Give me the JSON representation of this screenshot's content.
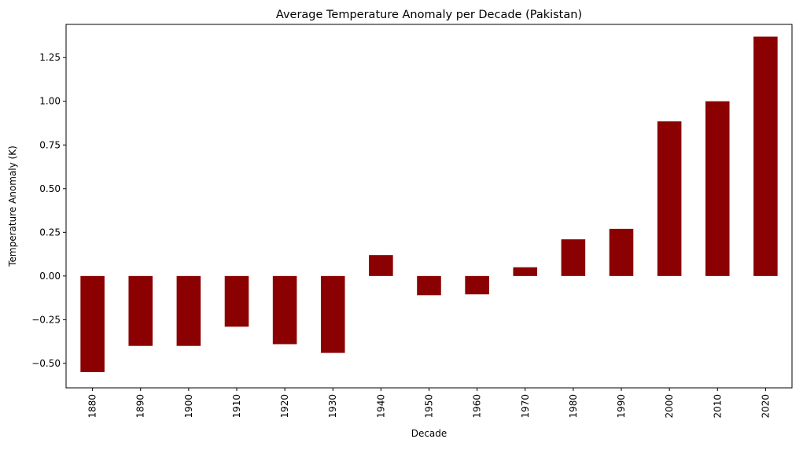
{
  "chart_data": {
    "type": "bar",
    "title": "Average Temperature Anomaly per Decade (Pakistan)",
    "xlabel": "Decade",
    "ylabel": "Temperature Anomaly (K)",
    "categories": [
      "1880",
      "1890",
      "1900",
      "1910",
      "1920",
      "1930",
      "1940",
      "1950",
      "1960",
      "1970",
      "1980",
      "1990",
      "2000",
      "2010",
      "2020"
    ],
    "values": [
      -0.55,
      -0.4,
      -0.4,
      -0.29,
      -0.39,
      -0.44,
      0.12,
      -0.11,
      -0.105,
      0.05,
      0.21,
      0.27,
      0.885,
      1.0,
      1.37
    ],
    "ylim": [
      -0.64,
      1.44
    ],
    "yticks": [
      -0.5,
      -0.25,
      0.0,
      0.25,
      0.5,
      0.75,
      1.0,
      1.25
    ],
    "ytick_labels": [
      "−0.50",
      "−0.25",
      "0.00",
      "0.25",
      "0.50",
      "0.75",
      "1.00",
      "1.25"
    ],
    "bar_color": "#8b0000",
    "grid": false,
    "legend": false
  }
}
